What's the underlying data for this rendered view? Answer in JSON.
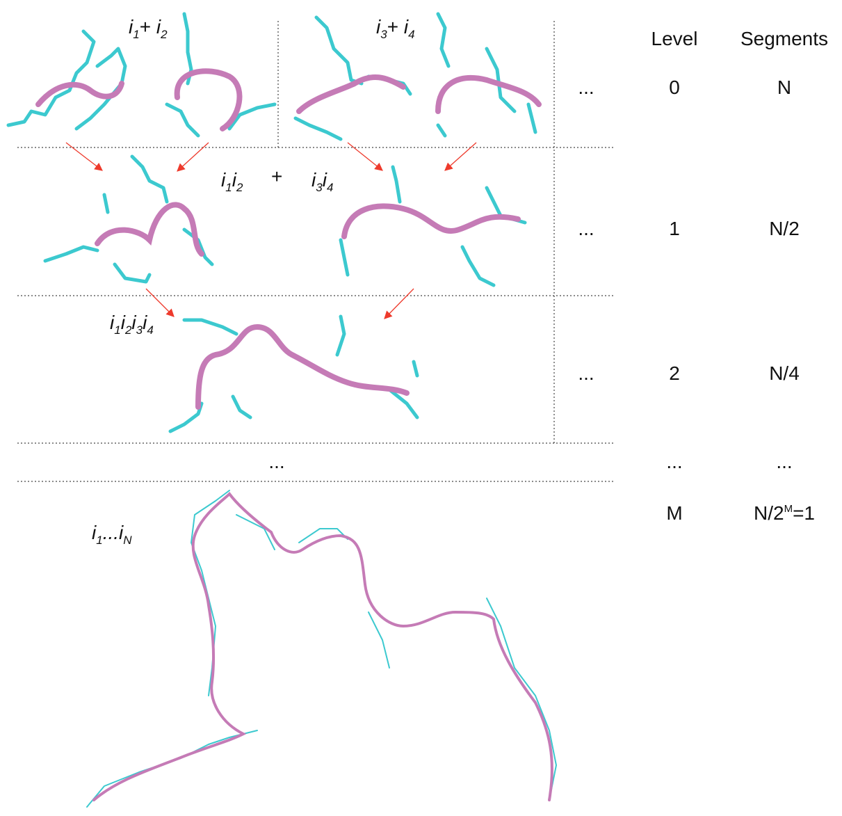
{
  "labels": {
    "level0_left": [
      "i",
      "1",
      "+ ",
      "i",
      "2"
    ],
    "level0_right": [
      "i",
      "3",
      "+ ",
      "i",
      "4"
    ],
    "level1_left": [
      "i",
      "1",
      "i",
      "2"
    ],
    "level1_plus": "+",
    "level1_right": [
      "i",
      "3",
      "i",
      "4"
    ],
    "level2": [
      "i",
      "1",
      "i",
      "2",
      "i",
      "3",
      "i",
      "4"
    ],
    "level_gap": "...",
    "level_final": [
      "i",
      "1",
      "...",
      "i",
      "N"
    ]
  },
  "table": {
    "header": [
      "Level",
      "Segments"
    ],
    "rows": [
      {
        "more": "...",
        "level": "0",
        "segments": [
          "N"
        ]
      },
      {
        "more": "...",
        "level": "1",
        "segments": [
          "N/2"
        ]
      },
      {
        "more": "...",
        "level": "2",
        "segments": [
          "N/4"
        ]
      },
      {
        "level": "...",
        "segments": [
          "..."
        ]
      },
      {
        "level": "M",
        "segments": [
          "N/2",
          "M",
          "=1"
        ]
      }
    ]
  }
}
